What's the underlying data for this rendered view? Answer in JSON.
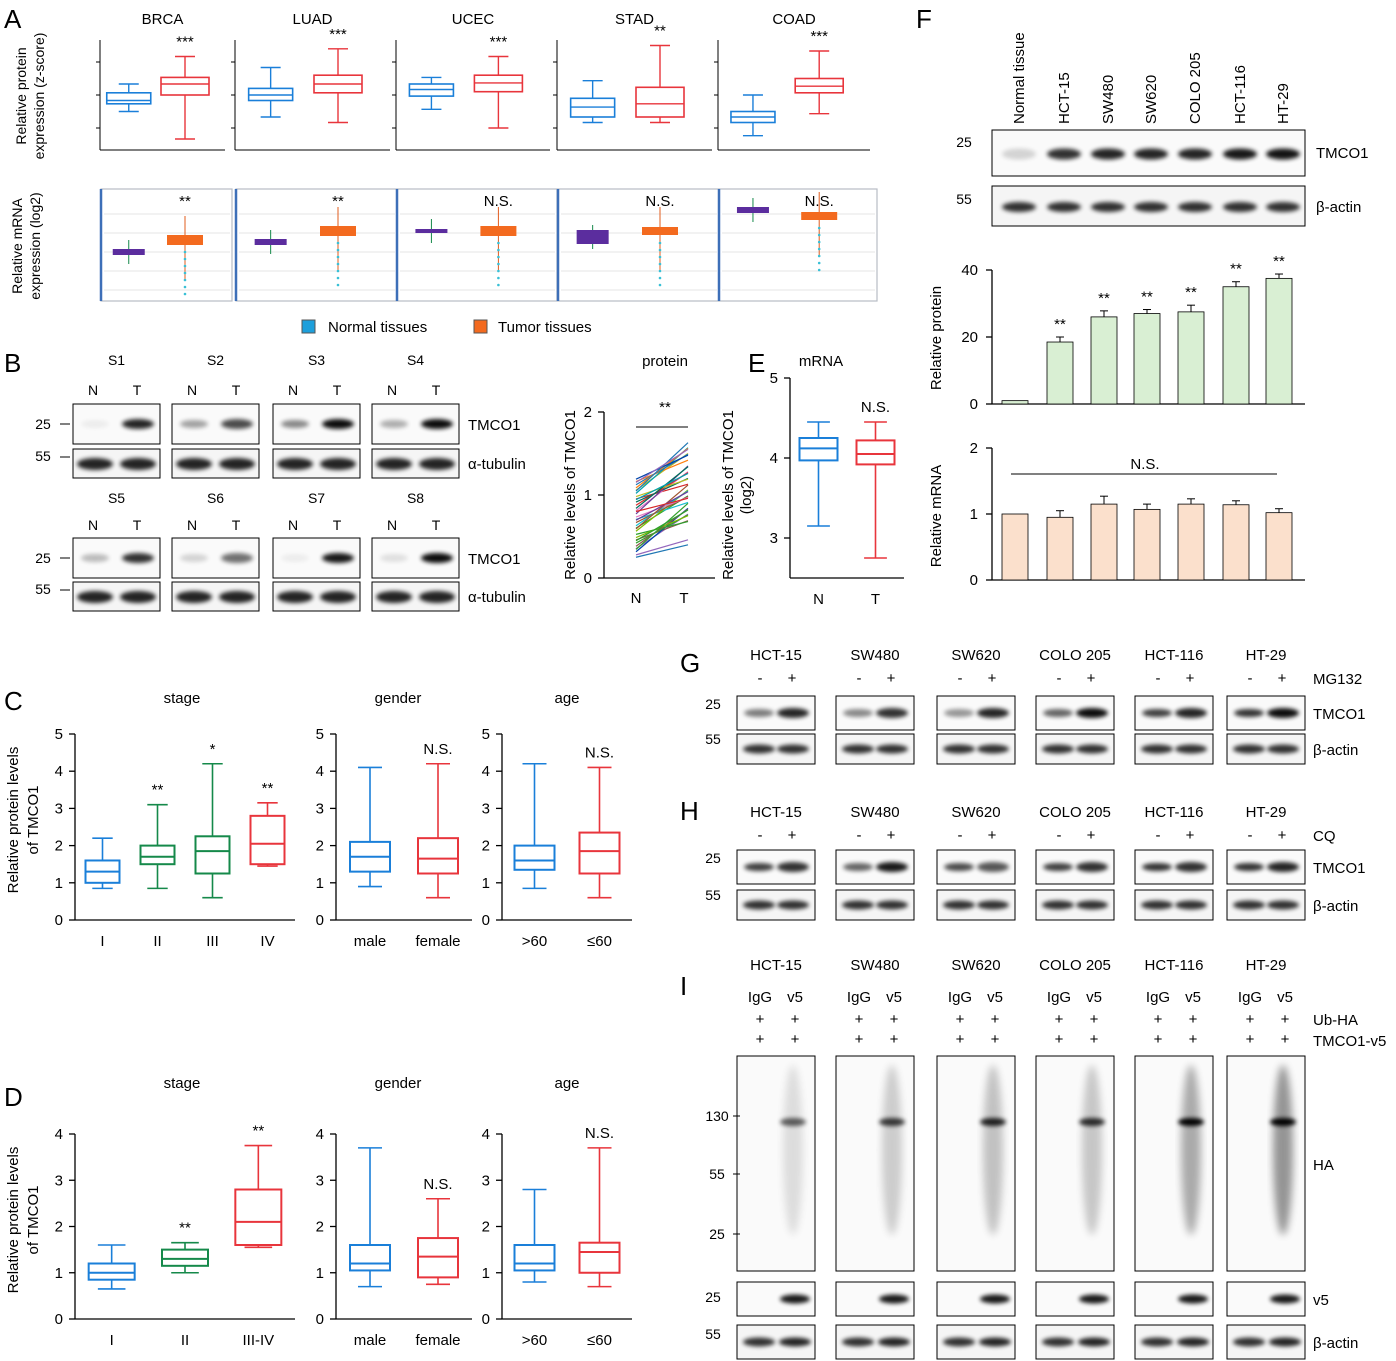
{
  "colors": {
    "normal": "#1a7fd9",
    "tumor": "#e8353c",
    "green": "#15894a",
    "purple": "#5b2d9e",
    "orange": "#f36a1f",
    "bar_green": "#d9efd3",
    "bar_peach": "#fbe0cc"
  },
  "panel_letters": {
    "A": "A",
    "B": "B",
    "C": "C",
    "D": "D",
    "E": "E",
    "F": "F",
    "G": "G",
    "H": "H",
    "I": "I"
  },
  "panel_A": {
    "cancers": [
      {
        "name": "BRCA",
        "prot_sig": "***",
        "mrna_sig": "**"
      },
      {
        "name": "LUAD",
        "prot_sig": "***",
        "mrna_sig": "**"
      },
      {
        "name": "UCEC",
        "prot_sig": "***",
        "mrna_sig": "N.S."
      },
      {
        "name": "STAD",
        "prot_sig": "**",
        "mrna_sig": "N.S."
      },
      {
        "name": "COAD",
        "prot_sig": "***",
        "mrna_sig": "N.S."
      }
    ],
    "ylabel_protein": [
      "Relative protein",
      "expression (z-score)"
    ],
    "ylabel_mrna": [
      "Relative mRNA",
      "expression (log2)"
    ],
    "legend_normal": "Normal tissues",
    "legend_tumor": "Tumor tissues"
  },
  "panel_B": {
    "samples_top": [
      "S1",
      "S2",
      "S3",
      "S4"
    ],
    "samples_bottom": [
      "S5",
      "S6",
      "S7",
      "S8"
    ],
    "lane_N": "N",
    "lane_T": "T",
    "marker_25": "25",
    "marker_55": "55",
    "protein": "TMCO1",
    "loading": "α-tubulin",
    "line_chart": {
      "title": "protein",
      "ylabel": "Relative levels of TMCO1",
      "sig": "**",
      "yticks": [
        "0",
        "1",
        "2"
      ],
      "xcats": [
        "N",
        "T"
      ]
    }
  },
  "panel_E": {
    "title": "mRNA",
    "ylabel": [
      "Relative levels of TMCO1",
      "(log2)"
    ],
    "sig": "N.S.",
    "yticks": [
      "3",
      "4",
      "5"
    ],
    "xcats": [
      "N",
      "T"
    ]
  },
  "panel_C": {
    "ylabel": [
      "Relative protein levels",
      "of TMCO1"
    ],
    "yticks": [
      "0",
      "1",
      "2",
      "3",
      "4",
      "5"
    ],
    "stage": {
      "title": "stage",
      "cats": [
        "I",
        "II",
        "III",
        "IV"
      ],
      "sigs": [
        "",
        "**",
        "*",
        "**"
      ]
    },
    "gender": {
      "title": "gender",
      "cats": [
        "male",
        "female"
      ],
      "sigs": [
        "",
        "N.S."
      ]
    },
    "age": {
      "title": "age",
      "cats": [
        ">60",
        "≤60"
      ],
      "sigs": [
        "",
        "N.S."
      ]
    }
  },
  "panel_D": {
    "ylabel": [
      "Relative protein levels",
      "of TMCO1"
    ],
    "yticks": [
      "0",
      "1",
      "2",
      "3",
      "4"
    ],
    "stage": {
      "title": "stage",
      "cats": [
        "I",
        "II",
        "III-IV"
      ],
      "sigs": [
        "",
        "**",
        "**"
      ]
    },
    "gender": {
      "title": "gender",
      "cats": [
        "male",
        "female"
      ],
      "sigs": [
        "",
        "N.S."
      ]
    },
    "age": {
      "title": "age",
      "cats": [
        ">60",
        "≤60"
      ],
      "sigs": [
        "",
        "N.S."
      ]
    }
  },
  "panel_F": {
    "lanes": [
      "Normal tissue",
      "HCT-15",
      "SW480",
      "SW620",
      "COLO 205",
      "HCT-116",
      "HT-29"
    ],
    "marker_25": "25",
    "marker_55": "55",
    "protein": "TMCO1",
    "loading": "β-actin",
    "protein_chart": {
      "ylabel": "Relative protein",
      "yticks": [
        "0",
        "20",
        "40"
      ],
      "values": [
        1,
        18.5,
        26,
        27,
        27.5,
        35,
        37.5
      ],
      "sigs": [
        "",
        "**",
        "**",
        "**",
        "**",
        "**",
        "**"
      ]
    },
    "mrna_chart": {
      "ylabel": "Relative mRNA",
      "yticks": [
        "0",
        "1",
        "2"
      ],
      "values": [
        1,
        0.95,
        1.15,
        1.07,
        1.15,
        1.14,
        1.02
      ],
      "sig": "N.S."
    }
  },
  "cell_lines": [
    "HCT-15",
    "SW480",
    "SW620",
    "COLO 205",
    "HCT-116",
    "HT-29"
  ],
  "panel_G": {
    "treatment": "MG132",
    "minus": "-",
    "plus": "+",
    "protein": "TMCO1",
    "loading": "β-actin",
    "marker_25": "25",
    "marker_55": "55"
  },
  "panel_H": {
    "treatment": "CQ",
    "minus": "-",
    "plus": "+",
    "protein": "TMCO1",
    "loading": "β-actin",
    "marker_25": "25",
    "marker_55": "55"
  },
  "panel_I": {
    "lane1": "IgG",
    "lane2": "v5",
    "row1": "Ub-HA",
    "row2": "TMCO1-v5",
    "plus": "+",
    "markers": [
      "130",
      "55",
      "25"
    ],
    "blot_HA": "HA",
    "blot_v5": "v5",
    "loading": "β-actin",
    "marker_25": "25",
    "marker_55": "55"
  },
  "chart_data": [
    {
      "type": "line",
      "title": "protein",
      "ylabel": "Relative levels of TMCO1",
      "categories": [
        "N",
        "T"
      ],
      "ylim": [
        0,
        2
      ]
    },
    {
      "type": "box",
      "title": "mRNA",
      "ylabel": "Relative levels of TMCO1 (log2)",
      "categories": [
        "N",
        "T"
      ],
      "ylim": [
        2.5,
        5
      ],
      "boxes": [
        {
          "min": 3.15,
          "q1": 3.97,
          "median": 4.12,
          "q3": 4.25,
          "max": 4.45
        },
        {
          "min": 2.75,
          "q1": 3.92,
          "median": 4.05,
          "q3": 4.22,
          "max": 4.45
        }
      ]
    },
    {
      "type": "bar",
      "ylabel": "Relative protein",
      "categories": [
        "Normal tissue",
        "HCT-15",
        "SW480",
        "SW620",
        "COLO 205",
        "HCT-116",
        "HT-29"
      ],
      "values": [
        1,
        18.5,
        26,
        27,
        27.5,
        35,
        37.5
      ],
      "ylim": [
        0,
        40
      ]
    },
    {
      "type": "bar",
      "ylabel": "Relative mRNA",
      "categories": [
        "Normal tissue",
        "HCT-15",
        "SW480",
        "SW620",
        "COLO 205",
        "HCT-116",
        "HT-29"
      ],
      "values": [
        1,
        0.95,
        1.15,
        1.07,
        1.15,
        1.14,
        1.02
      ],
      "ylim": [
        0,
        2
      ]
    },
    {
      "type": "box",
      "title": "stage",
      "ylabel": "Relative protein levels of TMCO1",
      "categories": [
        "I",
        "II",
        "III",
        "IV"
      ],
      "ylim": [
        0,
        5
      ],
      "boxes": [
        {
          "min": 0.85,
          "q1": 1.0,
          "median": 1.3,
          "q3": 1.6,
          "max": 2.2
        },
        {
          "min": 0.85,
          "q1": 1.5,
          "median": 1.7,
          "q3": 2.0,
          "max": 3.1
        },
        {
          "min": 0.6,
          "q1": 1.25,
          "median": 1.85,
          "q3": 2.25,
          "max": 4.2
        },
        {
          "min": 1.45,
          "q1": 1.5,
          "median": 2.05,
          "q3": 2.8,
          "max": 3.15
        }
      ]
    },
    {
      "type": "box",
      "title": "gender",
      "categories": [
        "male",
        "female"
      ],
      "ylim": [
        0,
        5
      ],
      "boxes": [
        {
          "min": 0.9,
          "q1": 1.3,
          "median": 1.7,
          "q3": 2.1,
          "max": 4.1
        },
        {
          "min": 0.6,
          "q1": 1.25,
          "median": 1.65,
          "q3": 2.2,
          "max": 4.2
        }
      ]
    },
    {
      "type": "box",
      "title": "age",
      "categories": [
        ">60",
        "≤60"
      ],
      "ylim": [
        0,
        5
      ],
      "boxes": [
        {
          "min": 0.85,
          "q1": 1.35,
          "median": 1.6,
          "q3": 2.0,
          "max": 4.2
        },
        {
          "min": 0.6,
          "q1": 1.25,
          "median": 1.85,
          "q3": 2.35,
          "max": 4.1
        }
      ]
    },
    {
      "type": "box",
      "title": "stage",
      "ylabel": "Relative protein levels of TMCO1",
      "categories": [
        "I",
        "II",
        "III-IV"
      ],
      "ylim": [
        0,
        4
      ],
      "boxes": [
        {
          "min": 0.65,
          "q1": 0.85,
          "median": 1.0,
          "q3": 1.2,
          "max": 1.6
        },
        {
          "min": 1.0,
          "q1": 1.15,
          "median": 1.3,
          "q3": 1.5,
          "max": 1.65
        },
        {
          "min": 1.55,
          "q1": 1.6,
          "median": 2.1,
          "q3": 2.8,
          "max": 3.75
        }
      ]
    },
    {
      "type": "box",
      "title": "gender",
      "categories": [
        "male",
        "female"
      ],
      "ylim": [
        0,
        4
      ],
      "boxes": [
        {
          "min": 0.7,
          "q1": 1.05,
          "median": 1.2,
          "q3": 1.6,
          "max": 3.7
        },
        {
          "min": 0.75,
          "q1": 0.9,
          "median": 1.35,
          "q3": 1.75,
          "max": 2.6
        }
      ]
    },
    {
      "type": "box",
      "title": "age",
      "categories": [
        ">60",
        "≤60"
      ],
      "ylim": [
        0,
        4
      ],
      "boxes": [
        {
          "min": 0.8,
          "q1": 1.05,
          "median": 1.2,
          "q3": 1.6,
          "max": 2.8
        },
        {
          "min": 0.7,
          "q1": 1.0,
          "median": 1.45,
          "q3": 1.65,
          "max": 3.7
        }
      ]
    }
  ]
}
